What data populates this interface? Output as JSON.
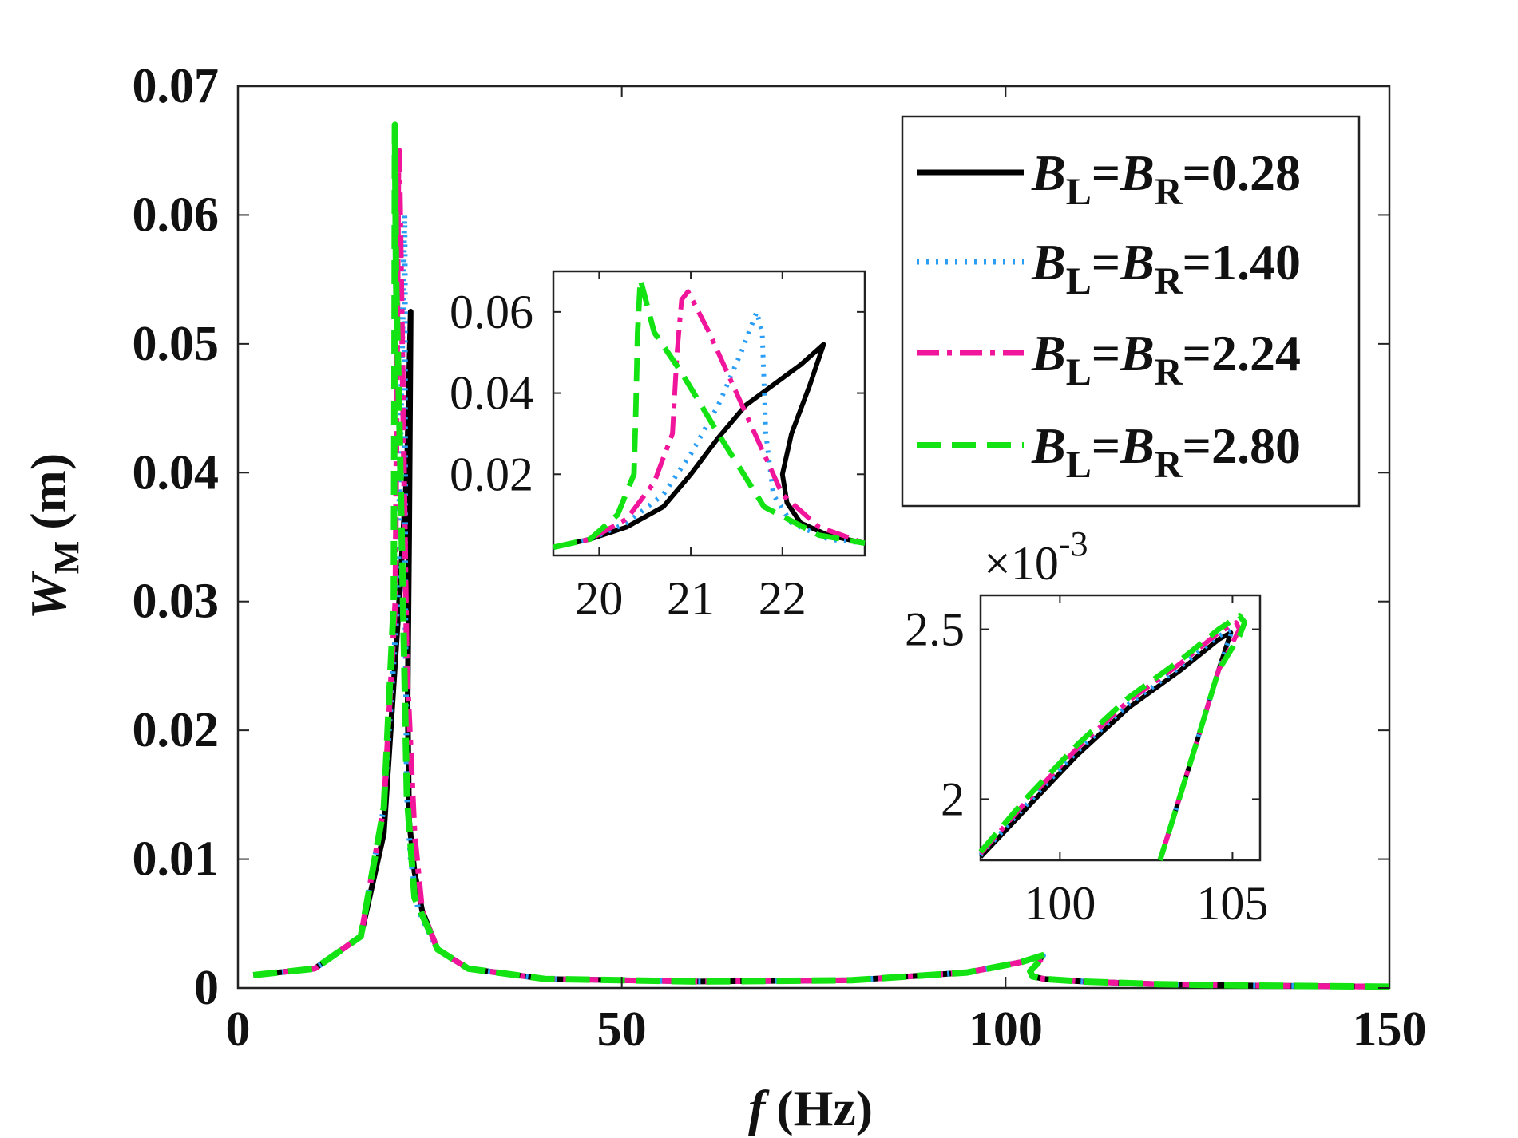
{
  "colors": {
    "black": "#000000",
    "blue": "#2a9df4",
    "magenta": "#f0159a",
    "green": "#13e313",
    "axis": "#222222"
  },
  "chart_data": [
    {
      "type": "line",
      "xlabel": {
        "var": "f",
        "unit": "(Hz)"
      },
      "ylabel": {
        "var": "W",
        "sub": "M",
        "unit": "(m)"
      },
      "xlim": [
        0,
        150
      ],
      "ylim": [
        0,
        0.07
      ],
      "xticks": [
        0,
        50,
        100,
        150
      ],
      "xtick_labels": [
        "0",
        "50",
        "100",
        "150"
      ],
      "yticks": [
        0,
        0.01,
        0.02,
        0.03,
        0.04,
        0.05,
        0.06,
        0.07
      ],
      "ytick_labels": [
        "0",
        "0.01",
        "0.02",
        "0.03",
        "0.04",
        "0.05",
        "0.06",
        "0.07"
      ],
      "legend_position": "top-right",
      "legend": [
        {
          "lhs1": "B",
          "sub1": "L",
          "eq1": "=",
          "lhs2": "B",
          "sub2": "R",
          "eq2": "=",
          "value": "0.28",
          "style": "solid",
          "color": "#000000"
        },
        {
          "lhs1": "B",
          "sub1": "L",
          "eq1": "=",
          "lhs2": "B",
          "sub2": "R",
          "eq2": "=",
          "value": "1.40",
          "style": "dotted",
          "color": "#2a9df4"
        },
        {
          "lhs1": "B",
          "sub1": "L",
          "eq1": "=",
          "lhs2": "B",
          "sub2": "R",
          "eq2": "=",
          "value": "2.24",
          "style": "dashdot",
          "color": "#f0159a"
        },
        {
          "lhs1": "B",
          "sub1": "L",
          "eq1": "=",
          "lhs2": "B",
          "sub2": "R",
          "eq2": "=",
          "value": "2.80",
          "style": "dashed",
          "color": "#13e313"
        }
      ],
      "series": [
        {
          "x": [
            2,
            10,
            16,
            19,
            21,
            22,
            22.5,
            22.3,
            22.1,
            22.3,
            23,
            24,
            26,
            30,
            40,
            60,
            80,
            95,
            102,
            104.8,
            104,
            103.2,
            103.5,
            105,
            110,
            120,
            130,
            150
          ],
          "y": [
            0.001,
            0.0015,
            0.004,
            0.012,
            0.03,
            0.04,
            0.0525,
            0.035,
            0.022,
            0.013,
            0.009,
            0.006,
            0.003,
            0.0015,
            0.0007,
            0.0005,
            0.0006,
            0.0012,
            0.002,
            0.0025,
            0.0018,
            0.0013,
            0.0009,
            0.0007,
            0.0005,
            0.0003,
            0.0002,
            0.0001
          ]
        },
        {
          "x": [
            2,
            10,
            16,
            19,
            20.8,
            21.4,
            21.7,
            21.75,
            21.8,
            22,
            22.5,
            23.5,
            26,
            30,
            40,
            60,
            80,
            95,
            102,
            104.9,
            104,
            103.2,
            103.5,
            105,
            110,
            120,
            130,
            150
          ],
          "y": [
            0.001,
            0.0015,
            0.004,
            0.014,
            0.03,
            0.05,
            0.06,
            0.055,
            0.03,
            0.015,
            0.01,
            0.006,
            0.003,
            0.0015,
            0.0007,
            0.0005,
            0.0006,
            0.0012,
            0.002,
            0.0025,
            0.0018,
            0.0013,
            0.0009,
            0.0007,
            0.0005,
            0.0003,
            0.0002,
            0.0001
          ]
        },
        {
          "x": [
            2,
            10,
            16,
            19,
            20.5,
            20.8,
            20.9,
            21.0,
            21.4,
            22,
            23,
            24,
            26,
            30,
            40,
            60,
            80,
            95,
            102,
            105,
            104,
            103.2,
            103.5,
            105,
            110,
            120,
            130,
            150
          ],
          "y": [
            0.001,
            0.0015,
            0.004,
            0.014,
            0.03,
            0.055,
            0.064,
            0.065,
            0.05,
            0.025,
            0.012,
            0.006,
            0.003,
            0.0015,
            0.0007,
            0.0005,
            0.0006,
            0.0012,
            0.002,
            0.0025,
            0.0018,
            0.0013,
            0.0009,
            0.0007,
            0.0005,
            0.0003,
            0.0002,
            0.0001
          ]
        },
        {
          "x": [
            2,
            10,
            16,
            19,
            20.3,
            20.4,
            20.45,
            20.6,
            21,
            21.5,
            22,
            23,
            26,
            30,
            40,
            60,
            80,
            95,
            102,
            105.2,
            104,
            103.2,
            103.5,
            105,
            110,
            120,
            130,
            150
          ],
          "y": [
            0.001,
            0.0015,
            0.004,
            0.014,
            0.03,
            0.05,
            0.067,
            0.055,
            0.045,
            0.03,
            0.015,
            0.007,
            0.003,
            0.0015,
            0.0007,
            0.0005,
            0.0006,
            0.0012,
            0.002,
            0.0026,
            0.0018,
            0.0013,
            0.0009,
            0.0007,
            0.0005,
            0.0003,
            0.0002,
            0.0001
          ]
        }
      ]
    },
    {
      "type": "line",
      "xlim": [
        19.5,
        22.9
      ],
      "ylim": [
        0,
        0.07
      ],
      "xticks": [
        20,
        21,
        22
      ],
      "xtick_labels": [
        "20",
        "21",
        "22"
      ],
      "yticks": [
        0.02,
        0.04,
        0.06
      ],
      "ytick_labels": [
        "0.02",
        "0.04",
        "0.06"
      ],
      "series": [
        {
          "x": [
            19.5,
            19.9,
            20.3,
            20.7,
            21.0,
            21.3,
            21.6,
            21.9,
            22.2,
            22.45,
            22.3,
            22.1,
            22.0,
            22.05,
            22.2,
            22.5,
            22.9
          ],
          "y": [
            0.002,
            0.004,
            0.007,
            0.012,
            0.02,
            0.029,
            0.037,
            0.042,
            0.047,
            0.052,
            0.042,
            0.03,
            0.02,
            0.013,
            0.008,
            0.005,
            0.003
          ]
        },
        {
          "x": [
            19.5,
            19.9,
            20.3,
            20.7,
            21.0,
            21.3,
            21.55,
            21.72,
            21.78,
            21.82,
            21.9,
            22.1,
            22.5,
            22.9
          ],
          "y": [
            0.002,
            0.004,
            0.008,
            0.015,
            0.025,
            0.037,
            0.05,
            0.06,
            0.055,
            0.03,
            0.015,
            0.008,
            0.004,
            0.003
          ]
        },
        {
          "x": [
            19.5,
            19.9,
            20.3,
            20.6,
            20.8,
            20.85,
            20.9,
            20.97,
            21.2,
            21.6,
            22.0,
            22.4,
            22.9
          ],
          "y": [
            0.002,
            0.004,
            0.009,
            0.018,
            0.03,
            0.05,
            0.063,
            0.065,
            0.055,
            0.035,
            0.015,
            0.007,
            0.003
          ]
        },
        {
          "x": [
            19.5,
            19.9,
            20.2,
            20.38,
            20.4,
            20.42,
            20.45,
            20.6,
            20.9,
            21.3,
            21.8,
            22.4,
            22.9
          ],
          "y": [
            0.002,
            0.004,
            0.01,
            0.02,
            0.035,
            0.055,
            0.068,
            0.055,
            0.045,
            0.03,
            0.012,
            0.005,
            0.003
          ]
        }
      ]
    },
    {
      "type": "line",
      "xlim": [
        97.7,
        105.8
      ],
      "ylim": [
        1.82,
        2.6
      ],
      "xticks": [
        100,
        105
      ],
      "xtick_labels": [
        "100",
        "105"
      ],
      "yticks": [
        2,
        2.5
      ],
      "ytick_labels": [
        "2",
        "2.5"
      ],
      "multiplier": {
        "base": "×10",
        "exp": "-3"
      },
      "series": [
        {
          "x": [
            97.7,
            99,
            100.5,
            102,
            103.5,
            104.6,
            104.95,
            104.6,
            104.0,
            103.3,
            102.9
          ],
          "y": [
            1.83,
            1.97,
            2.13,
            2.27,
            2.38,
            2.47,
            2.49,
            2.38,
            2.18,
            1.95,
            1.82
          ]
        },
        {
          "x": [
            97.7,
            99,
            100.5,
            102,
            103.5,
            104.6,
            105.0,
            104.6,
            104.0,
            103.3,
            102.9
          ],
          "y": [
            1.835,
            1.98,
            2.14,
            2.28,
            2.39,
            2.48,
            2.5,
            2.38,
            2.18,
            1.95,
            1.82
          ]
        },
        {
          "x": [
            97.7,
            99,
            100.5,
            102,
            103.5,
            104.6,
            105.1,
            105.2,
            104.6,
            104.0,
            103.3,
            102.9
          ],
          "y": [
            1.84,
            1.99,
            2.15,
            2.29,
            2.4,
            2.49,
            2.52,
            2.5,
            2.38,
            2.18,
            1.95,
            1.82
          ]
        },
        {
          "x": [
            97.7,
            99,
            100.5,
            102,
            103.5,
            104.6,
            105.2,
            105.35,
            105.2,
            104.6,
            104.0,
            103.3,
            102.9
          ],
          "y": [
            1.845,
            2.0,
            2.16,
            2.3,
            2.41,
            2.5,
            2.54,
            2.52,
            2.48,
            2.38,
            2.18,
            1.95,
            1.82
          ]
        }
      ]
    }
  ]
}
